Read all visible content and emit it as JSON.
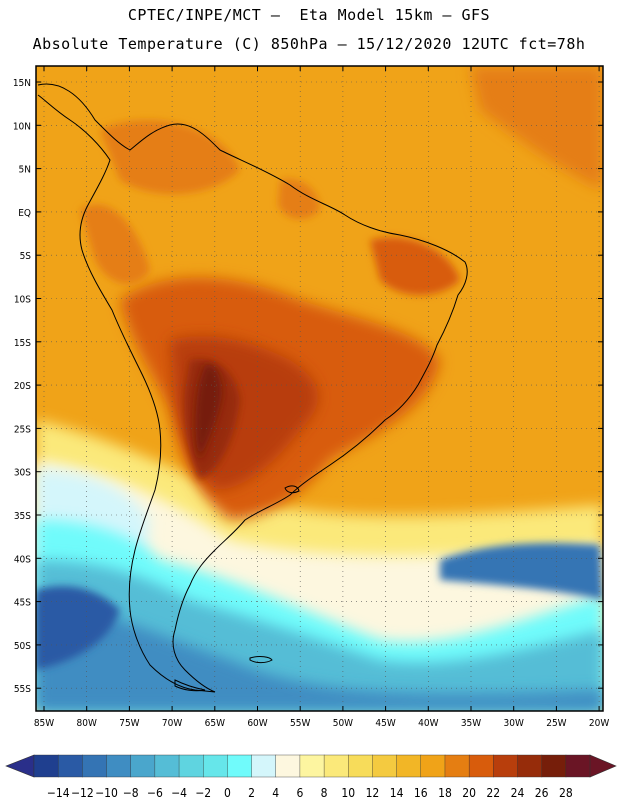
{
  "header": {
    "line1": "CPTEC/INPE/MCT –  Eta Model 15km – GFS",
    "line2": "Absolute Temperature (C) 850hPa – 15/12/2020 12UTC fct=78h"
  },
  "map": {
    "lat_ticks": [
      "15N",
      "10N",
      "5N",
      "EQ",
      "5S",
      "10S",
      "15S",
      "20S",
      "25S",
      "30S",
      "35S",
      "40S",
      "45S",
      "50S",
      "55S"
    ],
    "lon_ticks": [
      "85W",
      "80W",
      "75W",
      "70W",
      "65W",
      "60W",
      "55W",
      "50W",
      "45W",
      "40W",
      "35W",
      "30W",
      "25W",
      "20W"
    ],
    "gridlines": "dotted"
  },
  "colorbar": {
    "labels": [
      "−14",
      "−12",
      "−10",
      "−8",
      "−6",
      "−4",
      "−2",
      "0",
      "2",
      "4",
      "6",
      "8",
      "10",
      "12",
      "14",
      "16",
      "18",
      "20",
      "22",
      "24",
      "26",
      "28"
    ],
    "colors": [
      "#1f3f8f",
      "#2a5aa5",
      "#3474b4",
      "#3f8dc2",
      "#4aa6cc",
      "#55bdd6",
      "#5fd4e0",
      "#66e6ea",
      "#70fbfb",
      "#d4f6fb",
      "#fdf7df",
      "#fdf5a0",
      "#fbe97a",
      "#f7dc5a",
      "#f4ca40",
      "#f2b626",
      "#f0a318",
      "#e57e12",
      "#d85c0c",
      "#b83e0c",
      "#962c0a",
      "#761e0a",
      "#6a1525"
    ],
    "end_left": "#2a2f8a",
    "end_right": "#6a1525"
  }
}
